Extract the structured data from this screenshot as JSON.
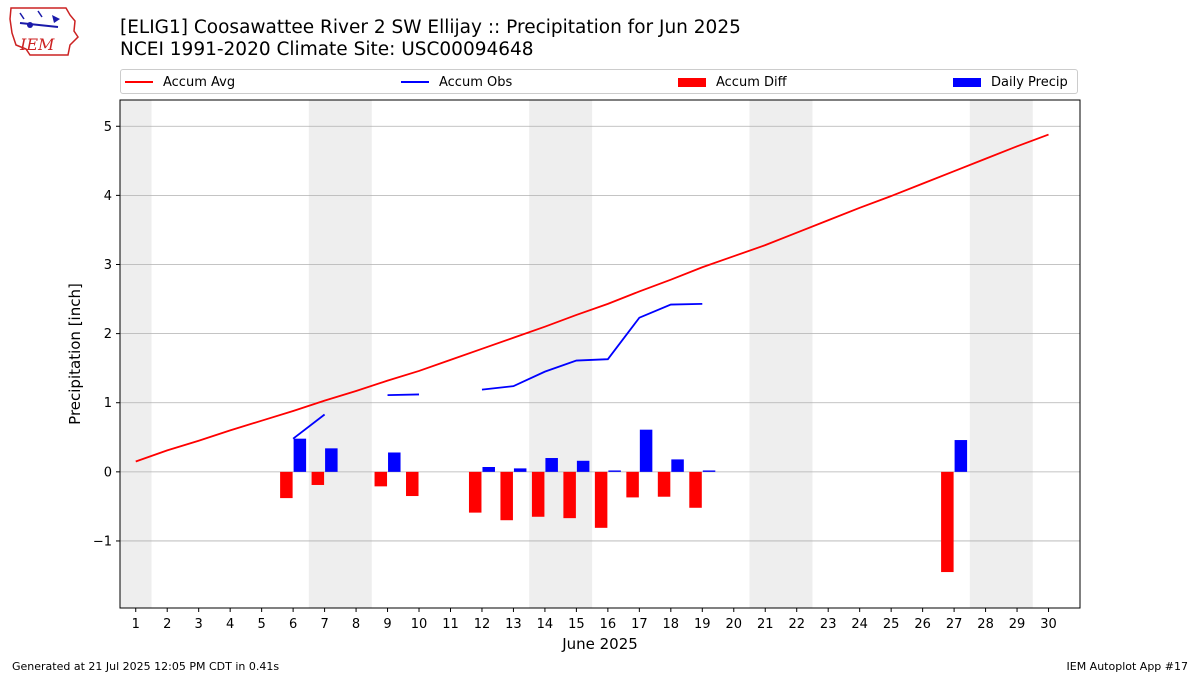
{
  "header": {
    "title_line1": "[ELIG1] Coosawattee River 2 SW Ellijay :: Precipitation for Jun 2025",
    "title_line2": "NCEI 1991-2020 Climate Site: USC00094648",
    "logo_text": "IEM"
  },
  "footer": {
    "left": "Generated at 21 Jul 2025 12:05 PM CDT in 0.41s",
    "right": "IEM Autoplot App #17"
  },
  "colors": {
    "avg": "#ff0000",
    "obs": "#0000ff",
    "diff": "#ff0000",
    "daily": "#0000ff",
    "weekend_band": "#eeeeee",
    "grid": "#b0b0b0"
  },
  "chart_data": {
    "type": "bar",
    "xlabel": "June 2025",
    "ylabel": "Precipitation [inch]",
    "xlim": [
      0.5,
      31.0
    ],
    "ylim": [
      -1.97,
      5.38
    ],
    "yticks": [
      -1,
      0,
      1,
      2,
      3,
      4,
      5
    ],
    "ytick_labels": [
      "−1",
      "0",
      "1",
      "2",
      "3",
      "4",
      "5"
    ],
    "days": [
      1,
      2,
      3,
      4,
      5,
      6,
      7,
      8,
      9,
      10,
      11,
      12,
      13,
      14,
      15,
      16,
      17,
      18,
      19,
      20,
      21,
      22,
      23,
      24,
      25,
      26,
      27,
      28,
      29,
      30
    ],
    "weekend_bands": [
      [
        0.5,
        1.5
      ],
      [
        6.5,
        8.5
      ],
      [
        13.5,
        15.5
      ],
      [
        20.5,
        22.5
      ],
      [
        27.5,
        29.5
      ]
    ],
    "grid": "y",
    "legend_position": "top",
    "legend": [
      "Accum Avg",
      "Accum Obs",
      "Accum Diff",
      "Daily Precip"
    ],
    "series": [
      {
        "name": "Accum Avg",
        "kind": "line",
        "x": [
          1,
          2,
          3,
          4,
          5,
          6,
          7,
          8,
          9,
          10,
          11,
          12,
          13,
          14,
          15,
          16,
          17,
          18,
          19,
          20,
          21,
          22,
          23,
          24,
          25,
          26,
          27,
          28,
          29,
          30
        ],
        "values": [
          0.15,
          0.31,
          0.45,
          0.6,
          0.74,
          0.88,
          1.03,
          1.17,
          1.32,
          1.46,
          1.62,
          1.78,
          1.94,
          2.1,
          2.27,
          2.43,
          2.61,
          2.78,
          2.96,
          3.12,
          3.28,
          3.46,
          3.64,
          3.82,
          3.99,
          4.17,
          4.35,
          4.53,
          4.71,
          4.88
        ]
      },
      {
        "name": "Accum Obs",
        "kind": "line",
        "segments": [
          {
            "x": [
              6,
              7
            ],
            "values": [
              0.48,
              0.83
            ]
          },
          {
            "x": [
              9,
              10
            ],
            "values": [
              1.11,
              1.12
            ]
          },
          {
            "x": [
              12,
              13,
              14,
              15,
              16,
              17,
              18,
              19
            ],
            "values": [
              1.19,
              1.24,
              1.45,
              1.61,
              1.63,
              2.23,
              2.42,
              2.43
            ]
          }
        ]
      },
      {
        "name": "Accum Diff",
        "kind": "bar",
        "x": [
          6,
          7,
          9,
          10,
          12,
          13,
          14,
          15,
          16,
          17,
          18,
          19,
          27
        ],
        "values": [
          -0.38,
          -0.19,
          -0.21,
          -0.35,
          -0.59,
          -0.7,
          -0.65,
          -0.67,
          -0.81,
          -0.37,
          -0.36,
          -0.52,
          -1.45
        ]
      },
      {
        "name": "Daily Precip",
        "kind": "bar",
        "x": [
          6,
          7,
          9,
          12,
          13,
          14,
          15,
          16,
          17,
          18,
          19,
          27
        ],
        "values": [
          0.48,
          0.34,
          0.28,
          0.07,
          0.05,
          0.2,
          0.16,
          0.02,
          0.61,
          0.18,
          0.02,
          0.46
        ]
      }
    ]
  }
}
